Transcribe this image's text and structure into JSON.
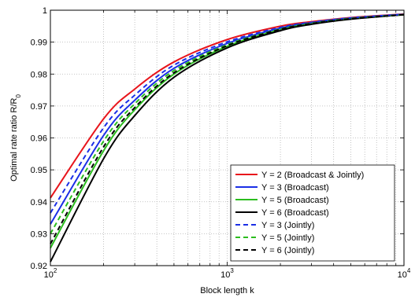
{
  "chart_data": {
    "type": "line",
    "title": "",
    "xlabel": "Block length k",
    "ylabel_main": "Optimal rate ratio R/R",
    "ylabel_sub": "0",
    "x_scale": "log",
    "xlim": [
      100,
      10000
    ],
    "ylim": [
      0.92,
      1.0
    ],
    "x_ticks": [
      {
        "value": 100,
        "base": "10",
        "exp": "2"
      },
      {
        "value": 1000,
        "base": "10",
        "exp": "3"
      },
      {
        "value": 10000,
        "base": "10",
        "exp": "4"
      }
    ],
    "y_ticks": [
      {
        "value": 0.92,
        "label": "0.92"
      },
      {
        "value": 0.93,
        "label": "0.93"
      },
      {
        "value": 0.94,
        "label": "0.94"
      },
      {
        "value": 0.95,
        "label": "0.95"
      },
      {
        "value": 0.96,
        "label": "0.96"
      },
      {
        "value": 0.97,
        "label": "0.97"
      },
      {
        "value": 0.98,
        "label": "0.98"
      },
      {
        "value": 0.99,
        "label": "0.99"
      },
      {
        "value": 1.0,
        "label": "1"
      }
    ],
    "grid": true,
    "legend_position": "bottom-right",
    "series": [
      {
        "name": "Y = 2 (Broadcast & Jointly)",
        "color": "#e8141b",
        "dash": "solid",
        "x": [
          100,
          200,
          300,
          500,
          1000,
          2000,
          3000,
          5000,
          10000
        ],
        "y": [
          0.9412,
          0.966,
          0.9753,
          0.9838,
          0.9908,
          0.995,
          0.9964,
          0.9977,
          0.9988
        ]
      },
      {
        "name": "Y = 3 (Broadcast)",
        "color": "#1a2ee6",
        "dash": "solid",
        "x": [
          100,
          200,
          300,
          500,
          1000,
          2000,
          3000,
          5000,
          10000
        ],
        "y": [
          0.933,
          0.9608,
          0.9718,
          0.9818,
          0.9896,
          0.9944,
          0.9961,
          0.9975,
          0.9987
        ]
      },
      {
        "name": "Y = 5 (Broadcast)",
        "color": "#2bbd1e",
        "dash": "solid",
        "x": [
          100,
          200,
          300,
          500,
          1000,
          2000,
          3000,
          5000,
          10000
        ],
        "y": [
          0.9255,
          0.956,
          0.9688,
          0.98,
          0.9887,
          0.9939,
          0.9958,
          0.9973,
          0.9986
        ]
      },
      {
        "name": "Y = 6 (Broadcast)",
        "color": "#000000",
        "dash": "solid",
        "x": [
          100,
          200,
          300,
          500,
          1000,
          2000,
          3000,
          5000,
          10000
        ],
        "y": [
          0.9212,
          0.9535,
          0.967,
          0.979,
          0.9882,
          0.9936,
          0.9956,
          0.9972,
          0.9986
        ]
      },
      {
        "name": "Y = 3 (Jointly)",
        "color": "#1a2ee6",
        "dash": "dashed",
        "x": [
          100,
          200,
          300,
          500,
          1000,
          2000,
          3000,
          5000,
          10000
        ],
        "y": [
          0.9365,
          0.9632,
          0.9734,
          0.9828,
          0.9901,
          0.9946,
          0.9962,
          0.9976,
          0.9987
        ]
      },
      {
        "name": "Y = 5 (Jointly)",
        "color": "#2bbd1e",
        "dash": "dashed",
        "x": [
          100,
          200,
          300,
          500,
          1000,
          2000,
          3000,
          5000,
          10000
        ],
        "y": [
          0.93,
          0.959,
          0.9707,
          0.9811,
          0.9892,
          0.9941,
          0.9959,
          0.9974,
          0.9986
        ]
      },
      {
        "name": "Y = 6 (Jointly)",
        "color": "#000000",
        "dash": "dashed",
        "x": [
          100,
          200,
          300,
          500,
          1000,
          2000,
          3000,
          5000,
          10000
        ],
        "y": [
          0.9268,
          0.9572,
          0.9695,
          0.9804,
          0.9889,
          0.994,
          0.9958,
          0.9973,
          0.9986
        ]
      }
    ]
  }
}
